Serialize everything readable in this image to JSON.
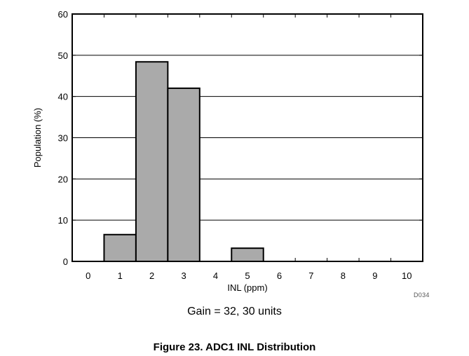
{
  "page": {
    "subtitle": "Gain = 32, 30 units",
    "caption": "Figure 23. ADC1 INL Distribution",
    "figure_id": "D034"
  },
  "colors": {
    "bar_fill": "#aaaaaa",
    "bar_stroke": "#000000",
    "grid": "#000000",
    "frame": "#000000"
  },
  "chart_data": {
    "type": "bar",
    "title": "",
    "xlabel": "INL (ppm)",
    "ylabel": "Population (%)",
    "categories": [
      "0",
      "1",
      "2",
      "3",
      "4",
      "5",
      "6",
      "7",
      "8",
      "9",
      "10"
    ],
    "values": [
      0,
      6.5,
      48.4,
      42.0,
      0,
      3.2,
      0,
      0,
      0,
      0,
      0
    ],
    "ylim": [
      0,
      60
    ],
    "yticks": [
      "0",
      "10",
      "20",
      "30",
      "40",
      "50",
      "60"
    ],
    "grid": true,
    "legend": "none"
  }
}
